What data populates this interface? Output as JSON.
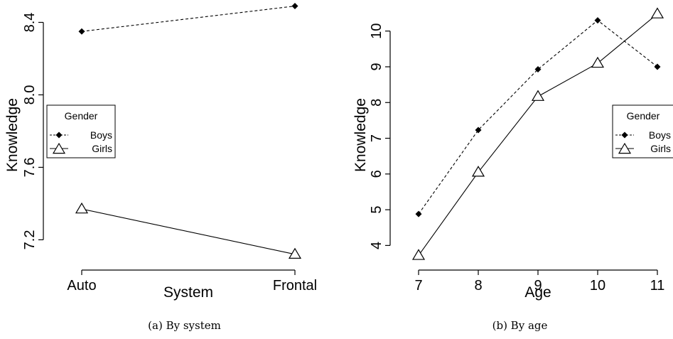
{
  "chart_data": [
    {
      "type": "line",
      "caption": "(a) By system",
      "xlabel": "System",
      "ylabel": "Knowledge",
      "categories": [
        "Auto",
        "Frontal"
      ],
      "yticks": [
        "7.2",
        "7.6",
        "8.0",
        "8.4"
      ],
      "ylim": [
        7.08,
        8.5
      ],
      "legend": {
        "title": "Gender",
        "placement": "left-middle"
      },
      "series": [
        {
          "name": "Boys",
          "values": [
            8.35,
            8.49
          ],
          "style": "dashed",
          "marker": "diamond"
        },
        {
          "name": "Girls",
          "values": [
            7.37,
            7.12
          ],
          "style": "solid",
          "marker": "triangle"
        }
      ]
    },
    {
      "type": "line",
      "caption": "(b) By age",
      "xlabel": "Age",
      "ylabel": "Knowledge",
      "categories": [
        "7",
        "8",
        "9",
        "10",
        "11"
      ],
      "yticks": [
        "4",
        "5",
        "6",
        "7",
        "8",
        "9",
        "10"
      ],
      "ylim": [
        3.55,
        10.75
      ],
      "legend": {
        "title": "Gender",
        "placement": "right-middle"
      },
      "series": [
        {
          "name": "Boys",
          "values": [
            4.88,
            7.23,
            8.93,
            10.3,
            9.0
          ],
          "style": "dashed",
          "marker": "diamond"
        },
        {
          "name": "Girls",
          "values": [
            3.72,
            6.05,
            8.17,
            9.1,
            10.48
          ],
          "style": "solid",
          "marker": "triangle"
        }
      ]
    }
  ]
}
